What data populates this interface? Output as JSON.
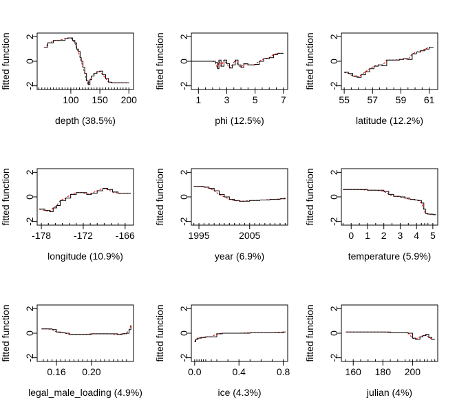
{
  "chart_data": [
    {
      "type": "line",
      "xlabel": "depth  (38.5%)",
      "ylabel": "fitted function",
      "xlim": [
        42,
        208
      ],
      "ylim": [
        -2.3,
        2.3
      ],
      "xticks": [
        100,
        150,
        200
      ],
      "yticks": [
        -2,
        0,
        2
      ],
      "rug": [
        45,
        50,
        55,
        60,
        65,
        70,
        75,
        80,
        85,
        90,
        95,
        100,
        105,
        110,
        115,
        120,
        125,
        130,
        135,
        140,
        145,
        150,
        155,
        160,
        165,
        170,
        175,
        180,
        185,
        190,
        195,
        200
      ],
      "x": [
        54,
        58,
        60,
        65,
        70,
        80,
        90,
        95,
        100,
        103,
        107,
        110,
        113,
        116,
        118,
        121,
        124,
        127,
        130,
        133,
        136,
        140,
        145,
        150,
        155,
        160,
        165,
        170,
        180,
        190,
        200
      ],
      "y": [
        1.15,
        1.15,
        1.5,
        1.5,
        1.7,
        1.7,
        1.85,
        1.9,
        1.9,
        1.7,
        1.5,
        1.0,
        0.8,
        0.3,
        0.0,
        -0.5,
        -1.0,
        -1.6,
        -1.9,
        -1.5,
        -1.2,
        -1.0,
        -0.85,
        -0.8,
        -1.1,
        -1.4,
        -1.7,
        -1.75,
        -1.75,
        -1.75,
        -1.75
      ]
    },
    {
      "type": "line",
      "xlabel": "phi  (12.5%)",
      "ylabel": "fitted function",
      "xlim": [
        0.5,
        7.3
      ],
      "ylim": [
        -2.3,
        2.3
      ],
      "xticks": [
        1,
        3,
        5,
        7
      ],
      "yticks": [
        -2,
        0,
        2
      ],
      "rug": [
        0.5,
        1,
        1.5,
        2,
        2.5,
        3,
        3.5,
        4,
        4.5,
        5,
        5.5,
        6,
        6.5,
        7
      ],
      "x": [
        0.5,
        1,
        1.5,
        2,
        2.2,
        2.35,
        2.45,
        2.6,
        2.8,
        3,
        3.2,
        3.4,
        3.6,
        3.8,
        4,
        4.2,
        4.5,
        4.8,
        5,
        5.3,
        5.6,
        6,
        6.3,
        6.6,
        7
      ],
      "y": [
        0.0,
        0.0,
        0.0,
        0.0,
        -0.1,
        -0.6,
        0.1,
        -0.4,
        0.1,
        -0.2,
        -0.55,
        -0.3,
        0.1,
        -0.3,
        -0.5,
        -0.2,
        -0.3,
        -0.3,
        -0.25,
        0.0,
        0.2,
        0.3,
        0.55,
        0.65,
        0.65
      ]
    },
    {
      "type": "line",
      "xlabel": "latitude  (12.2%)",
      "ylabel": "fitted function",
      "xlim": [
        54.8,
        61.6
      ],
      "ylim": [
        -2.3,
        2.3
      ],
      "xticks": [
        55,
        57,
        59,
        61
      ],
      "yticks": [
        -2,
        0,
        2
      ],
      "rug": [
        55,
        55.5,
        56,
        56.5,
        57,
        57.5,
        58,
        58.5,
        59,
        59.5,
        60,
        60.5,
        61
      ],
      "x": [
        55,
        55.3,
        55.6,
        55.9,
        56.2,
        56.5,
        56.8,
        57.1,
        57.4,
        57.7,
        58,
        58.3,
        58.6,
        58.9,
        59.2,
        59.5,
        59.8,
        60.1,
        60.4,
        60.7,
        61,
        61.3
      ],
      "y": [
        -0.9,
        -1.0,
        -1.2,
        -1.3,
        -1.1,
        -0.85,
        -0.6,
        -0.4,
        -0.3,
        -0.35,
        0.1,
        0.1,
        0.1,
        0.15,
        0.2,
        0.15,
        0.6,
        0.75,
        0.85,
        1.0,
        1.15,
        1.15
      ]
    },
    {
      "type": "line",
      "xlabel": "longitude  (10.9%)",
      "ylabel": "fitted function",
      "xlim": [
        -178.6,
        -164.8
      ],
      "ylim": [
        -2.3,
        2.3
      ],
      "xticks": [
        -178,
        -172,
        -166
      ],
      "yticks": [
        -2,
        0,
        2
      ],
      "rug": [
        -178,
        -177,
        -176,
        -175,
        -174,
        -173,
        -172,
        -171,
        -170,
        -169,
        -168,
        -167,
        -166
      ],
      "x": [
        -178.3,
        -177.5,
        -176.8,
        -176.3,
        -175.8,
        -175.3,
        -174.5,
        -173.8,
        -173,
        -172.2,
        -171.5,
        -170.8,
        -170,
        -169.2,
        -168.5,
        -167.8,
        -167,
        -166,
        -165.2
      ],
      "y": [
        -1.0,
        -1.1,
        -1.2,
        -0.9,
        -0.7,
        -0.3,
        -0.1,
        0.2,
        0.35,
        0.35,
        0.2,
        0.3,
        0.5,
        0.7,
        0.6,
        0.4,
        0.3,
        0.3,
        0.3
      ]
    },
    {
      "type": "line",
      "xlabel": "year  (6.9%)",
      "ylabel": "fitted function",
      "xlim": [
        1993.5,
        2012.5
      ],
      "ylim": [
        -2.3,
        2.3
      ],
      "xticks": [
        1995,
        2005
      ],
      "yticks": [
        -2,
        0,
        2
      ],
      "rug": [
        1994,
        1995,
        1996,
        1997,
        1998,
        1999,
        2000,
        2001,
        2002,
        2003,
        2004,
        2005,
        2006,
        2007,
        2008,
        2009,
        2010,
        2011,
        2012
      ],
      "x": [
        1994,
        1995,
        1996,
        1997,
        1998,
        1999,
        2000,
        2001,
        2002,
        2003,
        2004,
        2005,
        2006,
        2007,
        2008,
        2009,
        2010,
        2011,
        2012
      ],
      "y": [
        0.85,
        0.85,
        0.8,
        0.7,
        0.5,
        0.2,
        0.0,
        -0.2,
        -0.3,
        -0.35,
        -0.35,
        -0.3,
        -0.3,
        -0.25,
        -0.25,
        -0.2,
        -0.2,
        -0.15,
        -0.1
      ]
    },
    {
      "type": "line",
      "xlabel": "temperature  (5.9%)",
      "ylabel": "fitted function",
      "xlim": [
        -0.6,
        5.3
      ],
      "ylim": [
        -2.3,
        2.3
      ],
      "xticks": [
        0,
        1,
        2,
        3,
        4,
        5
      ],
      "yticks": [
        -2,
        0,
        2
      ],
      "rug": [
        -0.5,
        0,
        0.5,
        1,
        1.5,
        2,
        2.5,
        3,
        3.5,
        4,
        4.3,
        4.5,
        4.7,
        5
      ],
      "x": [
        -0.5,
        0,
        0.5,
        1,
        1.5,
        2,
        2.3,
        2.6,
        3,
        3.3,
        3.6,
        3.9,
        4.1,
        4.3,
        4.45,
        4.55,
        4.7,
        5,
        5.2
      ],
      "y": [
        0.6,
        0.6,
        0.6,
        0.55,
        0.55,
        0.45,
        0.2,
        0.05,
        0.0,
        -0.1,
        -0.2,
        -0.25,
        -0.3,
        -0.5,
        -1.0,
        -1.35,
        -1.4,
        -1.45,
        -1.45
      ]
    },
    {
      "type": "line",
      "xlabel": "legal_male_loading  (4.9%)",
      "ylabel": "fitted function",
      "xlim": [
        0.138,
        0.248
      ],
      "ylim": [
        -2.3,
        2.3
      ],
      "xticks": [
        0.16,
        0.2
      ],
      "yticks": [
        -2,
        0,
        2
      ],
      "rug": [
        0.145,
        0.15,
        0.155,
        0.16,
        0.165,
        0.17,
        0.175,
        0.18,
        0.185,
        0.19,
        0.195,
        0.2,
        0.205,
        0.21,
        0.215,
        0.22,
        0.225,
        0.23,
        0.235,
        0.24
      ],
      "x": [
        0.143,
        0.15,
        0.155,
        0.16,
        0.165,
        0.17,
        0.175,
        0.18,
        0.19,
        0.2,
        0.21,
        0.22,
        0.23,
        0.235,
        0.24,
        0.243,
        0.245
      ],
      "y": [
        0.35,
        0.35,
        0.3,
        0.1,
        0.05,
        0.0,
        -0.1,
        -0.1,
        -0.1,
        -0.05,
        -0.05,
        -0.05,
        -0.1,
        -0.05,
        0.0,
        0.3,
        0.65
      ]
    },
    {
      "type": "line",
      "xlabel": "ice  (4.3%)",
      "ylabel": "fitted function",
      "xlim": [
        -0.03,
        0.84
      ],
      "ylim": [
        -2.3,
        2.3
      ],
      "xticks": [
        0.0,
        0.4,
        0.8
      ],
      "yticks": [
        -2,
        0,
        2
      ],
      "rug": [
        0,
        0.02,
        0.04,
        0.06,
        0.08,
        0.1,
        0.15,
        0.2,
        0.3,
        0.4,
        0.5,
        0.6,
        0.7,
        0.8
      ],
      "x": [
        0,
        0.01,
        0.03,
        0.06,
        0.1,
        0.15,
        0.2,
        0.25,
        0.3,
        0.4,
        0.5,
        0.6,
        0.7,
        0.8,
        0.82
      ],
      "y": [
        -0.7,
        -0.5,
        -0.4,
        -0.35,
        -0.3,
        -0.3,
        -0.05,
        0.0,
        0.0,
        0.0,
        0.05,
        0.05,
        0.05,
        0.1,
        0.1
      ]
    },
    {
      "type": "line",
      "xlabel": "julian  (4%)",
      "ylabel": "fitted function",
      "xlim": [
        152,
        217
      ],
      "ylim": [
        -2.3,
        2.3
      ],
      "xticks": [
        160,
        180,
        200
      ],
      "yticks": [
        -2,
        0,
        2
      ],
      "rug": [
        155,
        160,
        165,
        170,
        175,
        180,
        185,
        190,
        195,
        198,
        200,
        203,
        205,
        208,
        210,
        213,
        215
      ],
      "x": [
        155,
        160,
        165,
        170,
        175,
        180,
        185,
        190,
        195,
        197,
        200,
        202,
        205,
        207,
        209,
        211,
        213,
        215
      ],
      "y": [
        0.1,
        0.1,
        0.1,
        0.1,
        0.1,
        0.1,
        0.05,
        0.05,
        0.05,
        0.0,
        -0.4,
        -0.5,
        -0.3,
        -0.2,
        -0.1,
        -0.35,
        -0.5,
        -0.5
      ]
    }
  ]
}
